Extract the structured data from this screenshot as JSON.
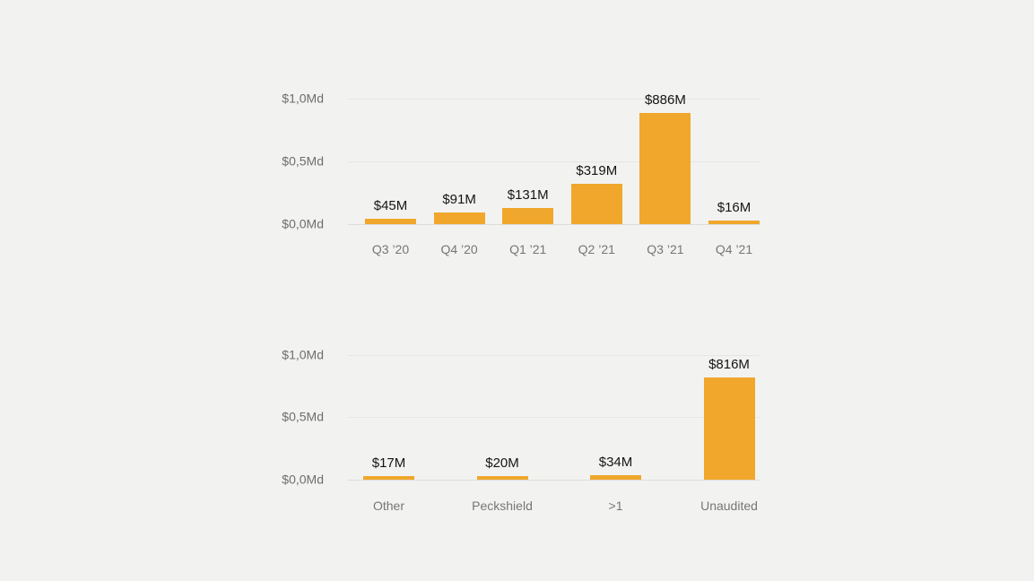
{
  "page": {
    "background_color": "#F2F2F1"
  },
  "accent_color": "#F0A72B",
  "chart_data": [
    {
      "type": "bar",
      "title": "",
      "xlabel": "",
      "ylabel": "",
      "categories": [
        "Q3 ’20",
        "Q4 ’20",
        "Q1 ’21",
        "Q2 ’21",
        "Q3 ’21",
        "Q4 ’21"
      ],
      "values": [
        45,
        91,
        131,
        319,
        886,
        16
      ],
      "data_labels": [
        "$45M",
        "$91M",
        "$131M",
        "$319M",
        "$886M",
        "$16M"
      ],
      "y_tick_values": [
        1000,
        500,
        0
      ],
      "y_tick_labels": [
        "$1,0Md",
        "$0,5Md",
        "$0,0Md"
      ],
      "ylim": [
        0,
        1000
      ],
      "grid": true,
      "legend": "none",
      "bar_color": "#F0A72B"
    },
    {
      "type": "bar",
      "title": "",
      "xlabel": "",
      "ylabel": "",
      "categories": [
        "Other",
        "Peckshield",
        ">1",
        "Unaudited"
      ],
      "values": [
        17,
        20,
        34,
        816
      ],
      "data_labels": [
        "$17M",
        "$20M",
        "$34M",
        "$816M"
      ],
      "y_tick_values": [
        1000,
        500,
        0
      ],
      "y_tick_labels": [
        "$1,0Md",
        "$0,5Md",
        "$0,0Md"
      ],
      "ylim": [
        0,
        1000
      ],
      "grid": true,
      "legend": "none",
      "bar_color": "#F0A72B"
    }
  ]
}
